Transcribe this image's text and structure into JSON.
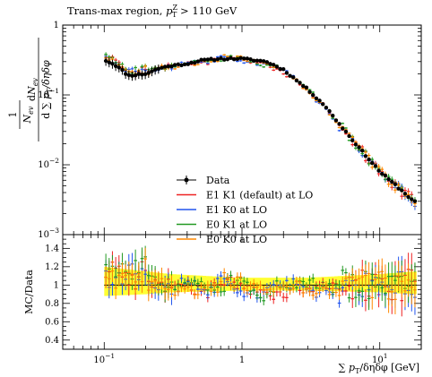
{
  "chart_data": {
    "type": "line",
    "title": "Trans-max region, p_T^Z > 110 GeV",
    "title_parts": {
      "prefix": "Trans-max region, ",
      "var": "p",
      "sub": "T",
      "sup": "Z",
      "suffix": " > 110 GeV"
    },
    "xlabel": "∑ p_T/δηδφ [GeV]",
    "xlabel_parts": {
      "sum": "∑",
      "var": "p",
      "sub": "T",
      "rest": "/δηδφ [GeV]"
    },
    "ylabel_upper": "1/N_ev dN_ev/d∑p_T/δηδφ",
    "ylabel_upper_parts": {
      "one": "1",
      "nev": "N",
      "nev_sub": "ev",
      "dn": "dN",
      "dn_sub": "ev",
      "d": "d",
      "sum": "∑",
      "pt": "p",
      "pt_sub": "T",
      "rest": "/δηδφ"
    },
    "ylabel_lower": "MC/Data",
    "x_scale": "log",
    "xlim": [
      0.05,
      20
    ],
    "x_ticks": [
      {
        "value": 0.1,
        "label": "10",
        "exp": "−1"
      },
      {
        "value": 1,
        "label": "1",
        "exp": ""
      },
      {
        "value": 10,
        "label": "10",
        "exp": "1"
      }
    ],
    "upper": {
      "y_scale": "log",
      "ylim": [
        0.001,
        1
      ],
      "y_ticks": [
        {
          "value": 1,
          "label": "1",
          "exp": ""
        },
        {
          "value": 0.1,
          "label": "10",
          "exp": "−1"
        },
        {
          "value": 0.01,
          "label": "10",
          "exp": "−2"
        },
        {
          "value": 0.001,
          "label": "10",
          "exp": "−3"
        }
      ]
    },
    "lower": {
      "ylim": [
        0.3,
        1.55
      ],
      "y_ticks": [
        {
          "value": 1.4,
          "label": "1.4"
        },
        {
          "value": 1.2,
          "label": "1.2"
        },
        {
          "value": 1.0,
          "label": "1"
        },
        {
          "value": 0.8,
          "label": "0.8"
        },
        {
          "value": 0.6,
          "label": "0.6"
        },
        {
          "value": 0.4,
          "label": "0.4"
        }
      ]
    },
    "legend_position": "lower-left",
    "series": [
      {
        "name": "Data",
        "color": "#000000",
        "marker": "circle",
        "seed": 11
      },
      {
        "name": "E1 K1 (default) at LO",
        "color": "#ee2222",
        "seed": 23
      },
      {
        "name": "E1 K0 at LO",
        "color": "#2255ee",
        "seed": 37
      },
      {
        "name": "E0 K1 at LO",
        "color": "#229922",
        "seed": 51
      },
      {
        "name": "E0 K0 at LO",
        "color": "#ff8800",
        "seed": 67
      }
    ],
    "data_x_range": [
      0.1,
      18.5
    ],
    "data_shape": {
      "x": [
        0.1,
        0.12,
        0.15,
        0.2,
        0.25,
        0.3,
        0.4,
        0.5,
        0.7,
        1.0,
        1.5,
        2.0,
        3.0,
        4.0,
        5.0,
        7.0,
        10.0,
        14.0,
        18.5
      ],
      "y": [
        0.32,
        0.27,
        0.19,
        0.2,
        0.24,
        0.26,
        0.28,
        0.31,
        0.33,
        0.33,
        0.3,
        0.23,
        0.12,
        0.07,
        0.04,
        0.018,
        0.008,
        0.0045,
        0.0028
      ]
    },
    "mc_ratio_envelope": {
      "x": [
        0.1,
        0.2,
        0.3,
        1.0,
        3.0,
        10.0,
        18.5
      ],
      "low": [
        0.88,
        0.9,
        0.92,
        0.94,
        0.94,
        0.92,
        0.9
      ],
      "high": [
        1.2,
        1.15,
        1.12,
        1.08,
        1.08,
        1.12,
        1.15
      ]
    }
  },
  "colors": {
    "band": "#ffff33",
    "axis": "#000000"
  }
}
